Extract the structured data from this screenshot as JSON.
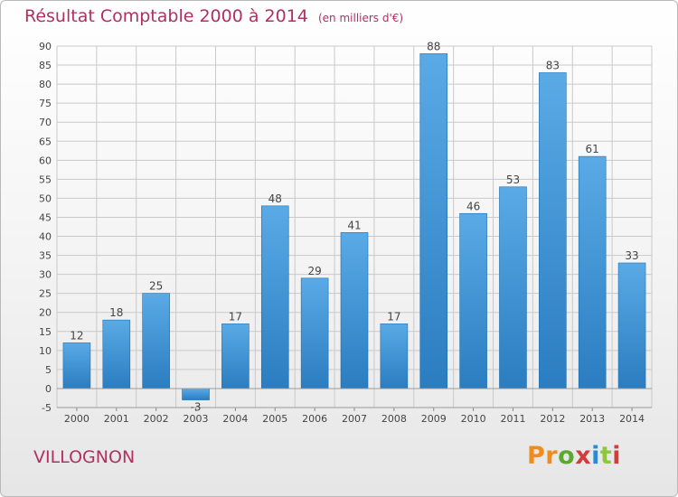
{
  "header": {
    "title": "Résultat Comptable 2000 à 2014",
    "subtitle": "(en milliers d'€)"
  },
  "footer": {
    "place": "VILLOGNON",
    "logo": "Proxiti"
  },
  "colors": {
    "title": "#b03060",
    "bar_light": "#5aaae6",
    "bar_dark": "#2a7dc0",
    "grid": "#c9c9c9",
    "logo": [
      "#f08c1e",
      "#f08c1e",
      "#5aaa32",
      "#d23c3c",
      "#2a8ad2",
      "#8cc83c",
      "#d23c3c"
    ]
  },
  "chart_data": {
    "type": "bar",
    "categories": [
      "2000",
      "2001",
      "2002",
      "2003",
      "2004",
      "2005",
      "2006",
      "2007",
      "2008",
      "2009",
      "2010",
      "2011",
      "2012",
      "2013",
      "2014"
    ],
    "values": [
      12,
      18,
      25,
      -3,
      17,
      48,
      29,
      41,
      17,
      88,
      46,
      53,
      83,
      61,
      33
    ],
    "data_labels": [
      "12",
      "18",
      "25",
      "-3",
      "17",
      "48",
      "29",
      "41",
      "17",
      "88",
      "46",
      "53",
      "83",
      "61",
      "33"
    ],
    "ylim": [
      -5,
      90
    ],
    "yticks": [
      -5,
      0,
      5,
      10,
      15,
      20,
      25,
      30,
      35,
      40,
      45,
      50,
      55,
      60,
      65,
      70,
      75,
      80,
      85,
      90
    ],
    "grid": true,
    "title": "Résultat Comptable 2000 à 2014",
    "xlabel": "",
    "ylabel": ""
  }
}
